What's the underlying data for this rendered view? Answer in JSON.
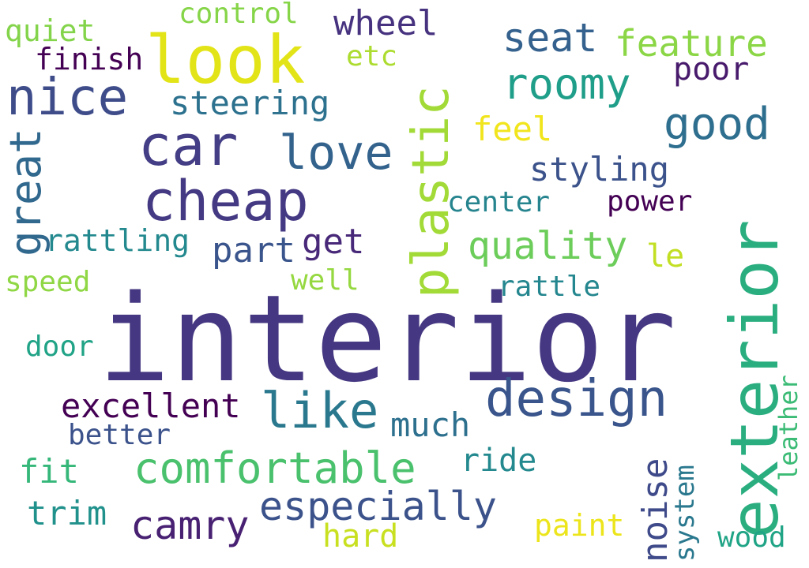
{
  "words": [
    {
      "text": "interior",
      "color": "#453781"
    },
    {
      "text": "exterior",
      "color": "#2aae80"
    },
    {
      "text": "look",
      "color": "#e2e418"
    },
    {
      "text": "cheap",
      "color": "#443983"
    },
    {
      "text": "car",
      "color": "#433e85"
    },
    {
      "text": "plastic",
      "color": "#a2da37"
    },
    {
      "text": "nice",
      "color": "#3e4c8a"
    },
    {
      "text": "design",
      "color": "#39558c"
    },
    {
      "text": "love",
      "color": "#33638d"
    },
    {
      "text": "like",
      "color": "#2a788e"
    },
    {
      "text": "comfortable",
      "color": "#4ac16d"
    },
    {
      "text": "roomy",
      "color": "#1f9e89"
    },
    {
      "text": "good",
      "color": "#2e6e8e"
    },
    {
      "text": "great",
      "color": "#31688e"
    },
    {
      "text": "seat",
      "color": "#34618d"
    },
    {
      "text": "especially",
      "color": "#3b528b"
    },
    {
      "text": "camry",
      "color": "#482173"
    },
    {
      "text": "feature",
      "color": "#8bd646"
    },
    {
      "text": "quality",
      "color": "#6ccd5a"
    },
    {
      "text": "noise",
      "color": "#3e4a89"
    },
    {
      "text": "wheel",
      "color": "#46327e"
    },
    {
      "text": "excellent",
      "color": "#440154"
    },
    {
      "text": "part",
      "color": "#3a548c"
    },
    {
      "text": "get",
      "color": "#482878"
    },
    {
      "text": "steering",
      "color": "#2c718e"
    },
    {
      "text": "styling",
      "color": "#3b528b"
    },
    {
      "text": "feel",
      "color": "#f1e51d"
    },
    {
      "text": "much",
      "color": "#2d708e"
    },
    {
      "text": "ride",
      "color": "#23898e"
    },
    {
      "text": "hard",
      "color": "#c8e020"
    },
    {
      "text": "paint",
      "color": "#ece51b"
    },
    {
      "text": "poor",
      "color": "#481a6c"
    },
    {
      "text": "rattling",
      "color": "#23898e"
    },
    {
      "text": "finish",
      "color": "#440154"
    },
    {
      "text": "quiet",
      "color": "#84d44b"
    },
    {
      "text": "control",
      "color": "#86d549"
    },
    {
      "text": "etc",
      "color": "#addc30"
    },
    {
      "text": "center",
      "color": "#25848e"
    },
    {
      "text": "power",
      "color": "#440154"
    },
    {
      "text": "le",
      "color": "#c2df23"
    },
    {
      "text": "rattle",
      "color": "#24868e"
    },
    {
      "text": "well",
      "color": "#95d840"
    },
    {
      "text": "speed",
      "color": "#8fd744"
    },
    {
      "text": "door",
      "color": "#20a386"
    },
    {
      "text": "better",
      "color": "#3b528b"
    },
    {
      "text": "fit",
      "color": "#35b779"
    },
    {
      "text": "trim",
      "color": "#21918c"
    },
    {
      "text": "system",
      "color": "#2a788e"
    },
    {
      "text": "leather",
      "color": "#3bbb75"
    },
    {
      "text": "wood",
      "color": "#20a486"
    }
  ]
}
